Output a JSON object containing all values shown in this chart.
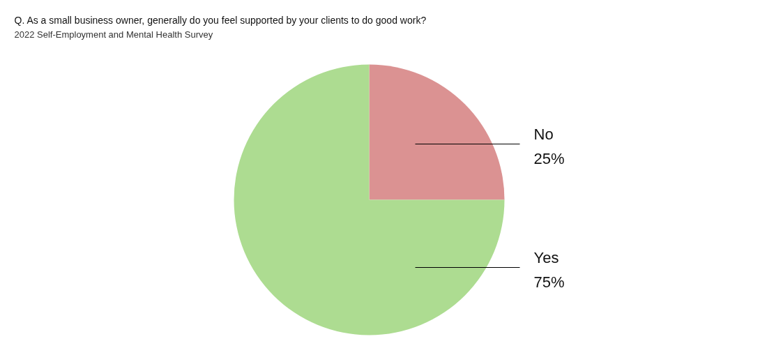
{
  "chart_data": {
    "type": "pie",
    "title": "Q. As a small business owner, generally do you feel supported by your clients to do good work?",
    "subtitle": "2022 Self-Employment and Mental Health Survey",
    "categories": [
      "No",
      "Yes"
    ],
    "values": [
      25,
      75
    ],
    "value_labels": [
      "25%",
      "75%"
    ],
    "colors": [
      "#db9292",
      "#addc91"
    ]
  }
}
